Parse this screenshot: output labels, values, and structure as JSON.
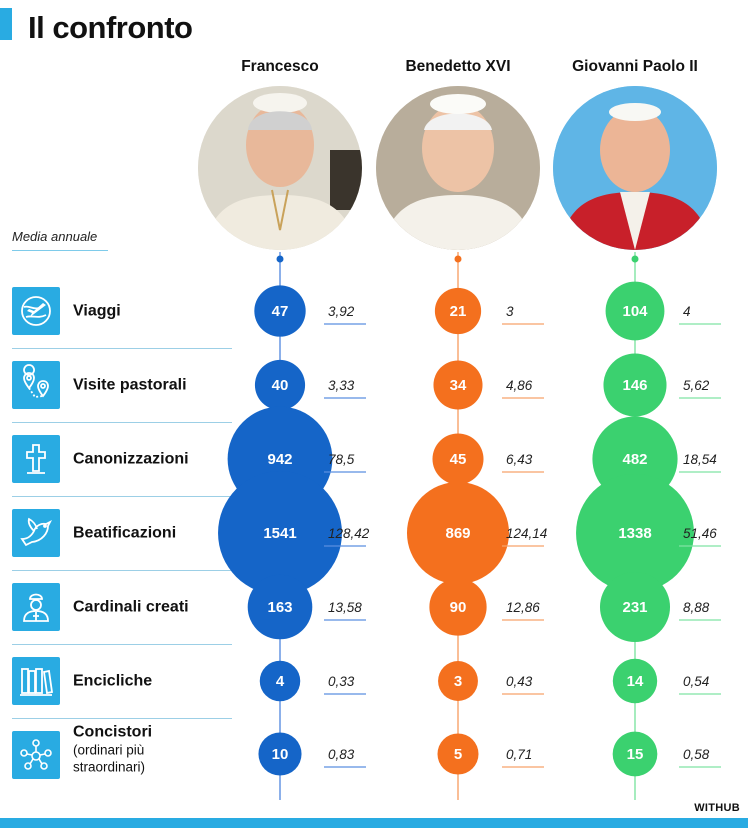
{
  "title": "Il confronto",
  "subtitle_label": "Media annuale",
  "credit": "WITHUB",
  "colors": {
    "accent": "#29abe2",
    "francesco": "#1565c8",
    "benedetto": "#f4701e",
    "giovanni": "#3bd16f",
    "francesco_line": "#5b8fe0",
    "benedetto_line": "#f7a26a",
    "giovanni_line": "#7fe3a3"
  },
  "icons": [
    "globe-plane-icon",
    "map-pins-icon",
    "cross-icon",
    "dove-icon",
    "cardinal-icon",
    "books-icon",
    "people-network-icon"
  ],
  "chart_data": {
    "type": "bubble-table",
    "series": [
      {
        "name": "Francesco",
        "totals": [
          47,
          40,
          942,
          1541,
          163,
          4,
          10
        ],
        "averages": [
          "3,92",
          "3,33",
          "78,5",
          "128,42",
          "13,58",
          "0,33",
          "0,83"
        ]
      },
      {
        "name": "Benedetto XVI",
        "totals": [
          21,
          34,
          45,
          869,
          90,
          3,
          5
        ],
        "averages": [
          "3",
          "4,86",
          "6,43",
          "124,14",
          "12,86",
          "0,43",
          "0,71"
        ]
      },
      {
        "name": "Giovanni Paolo II",
        "totals": [
          104,
          146,
          482,
          1338,
          231,
          14,
          15
        ],
        "averages": [
          "4",
          "5,62",
          "18,54",
          "51,46",
          "8,88",
          "0,54",
          "0,58"
        ]
      }
    ],
    "categories": [
      {
        "label": "Viaggi",
        "sub": ""
      },
      {
        "label": "Visite pastorali",
        "sub": ""
      },
      {
        "label": "Canonizzazioni",
        "sub": ""
      },
      {
        "label": "Beatificazioni",
        "sub": ""
      },
      {
        "label": "Cardinali creati",
        "sub": ""
      },
      {
        "label": "Encicliche",
        "sub": ""
      },
      {
        "label": "Concistori",
        "sub": "(ordinari più straordinari)"
      }
    ]
  }
}
